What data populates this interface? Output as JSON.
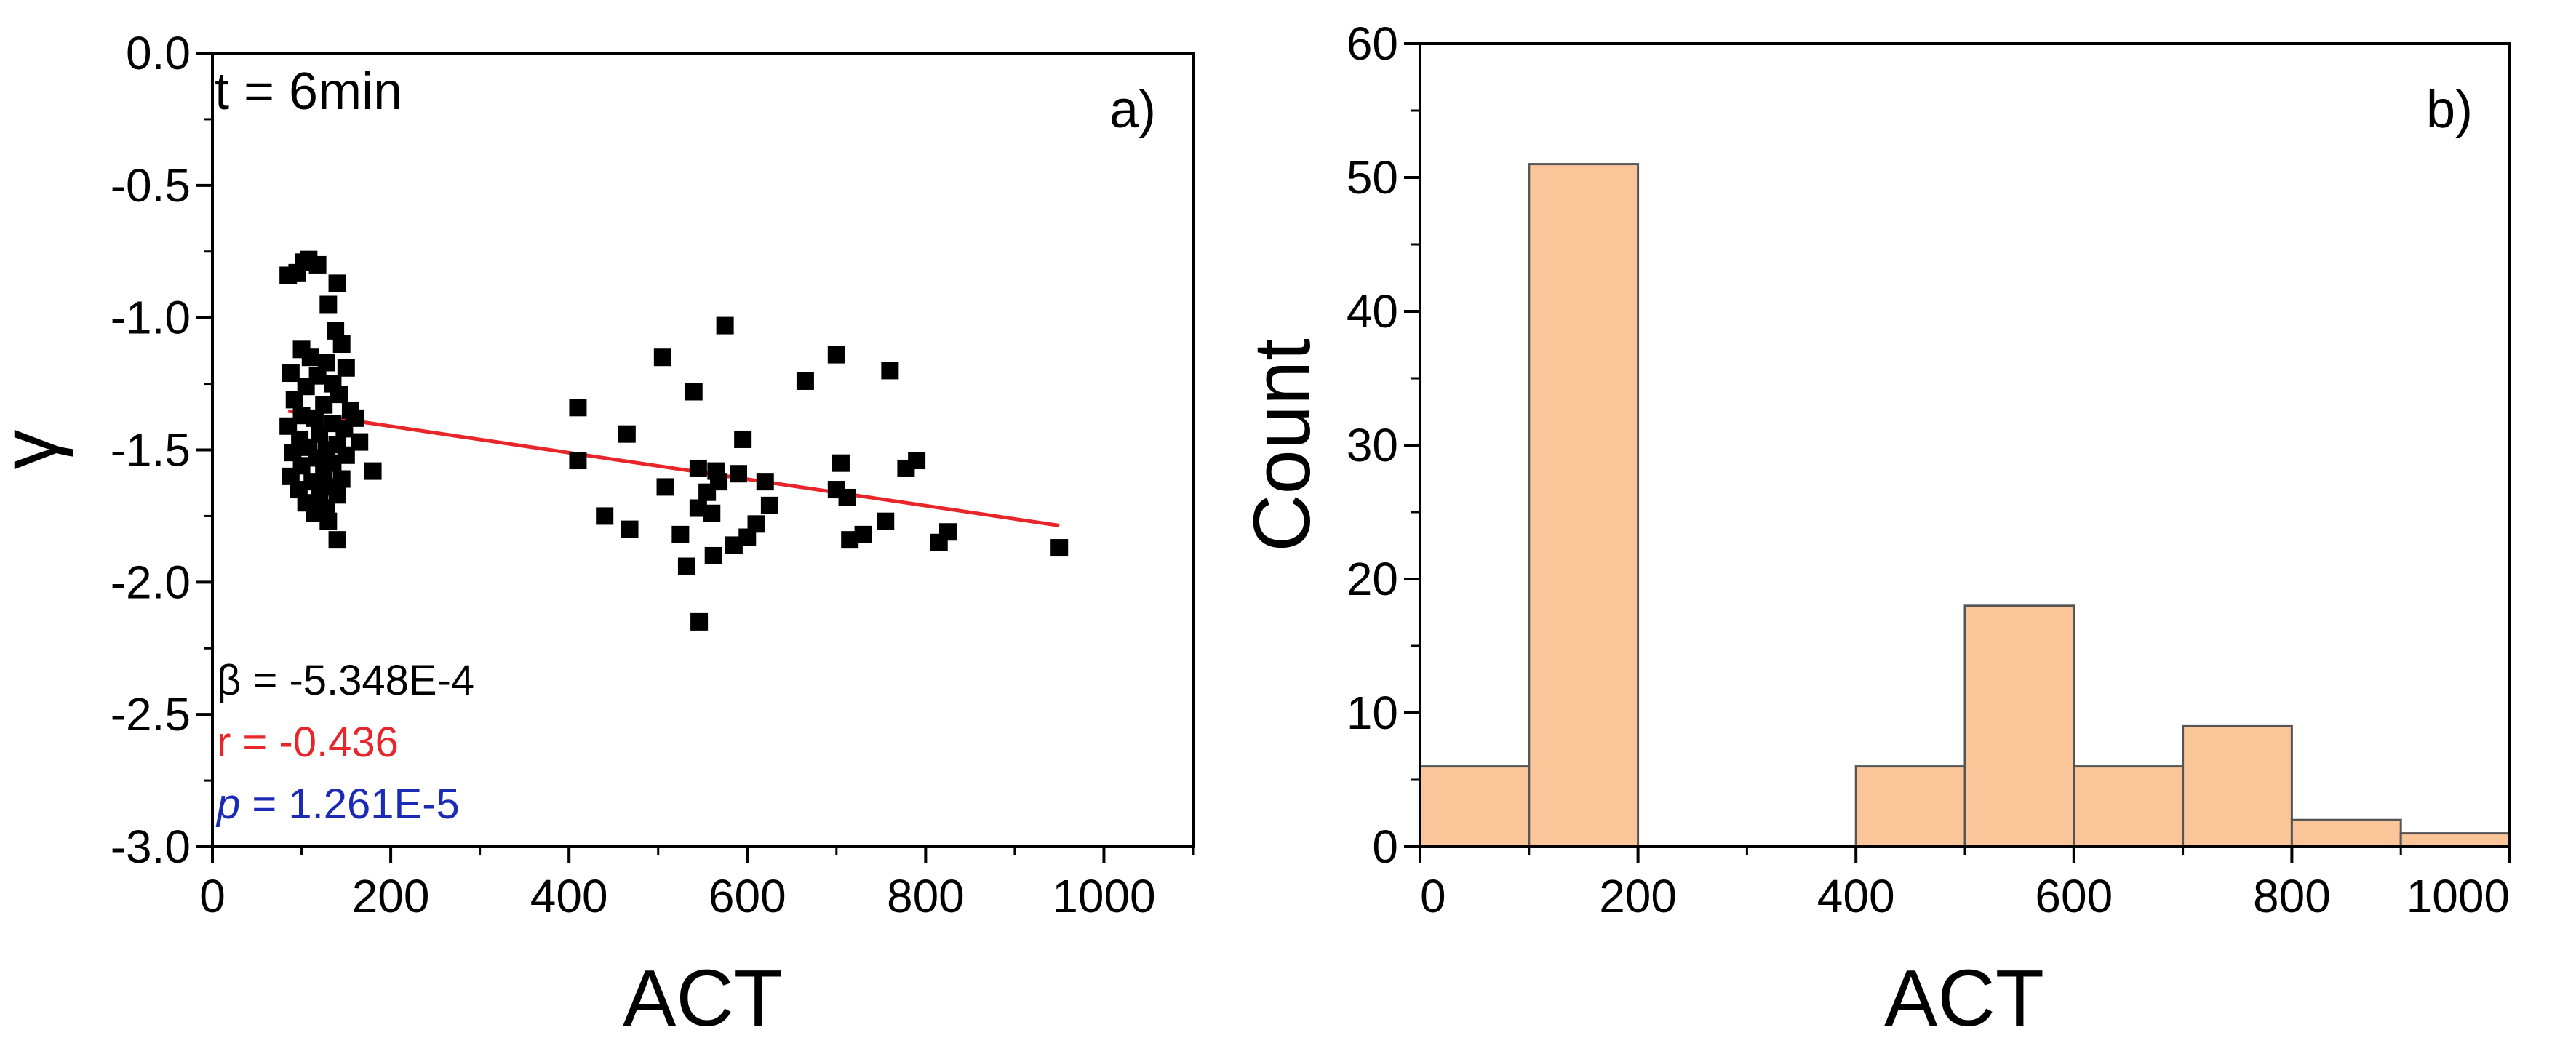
{
  "colors": {
    "marker": "#000000",
    "fit_line": "#e8262a",
    "annot_beta": "#000000",
    "annot_r": "#e8262a",
    "annot_p": "#1c2bb5",
    "bar_fill": "#fbc59a",
    "bar_edge": "#555555"
  },
  "chart_data": [
    {
      "panel": "a)",
      "type": "scatter",
      "title": "t = 6min",
      "xlabel": "ACT",
      "ylabel": "γ",
      "xlim": [
        0,
        1100
      ],
      "ylim": [
        -3.0,
        0.0
      ],
      "xticks": [
        "0",
        "200",
        "400",
        "600",
        "800",
        "1000"
      ],
      "yticks": [
        "0.0",
        "-0.5",
        "-1.0",
        "-1.5",
        "-2.0",
        "-2.5",
        "-3.0"
      ],
      "annotations": {
        "beta_label": "β = -5.348E-4",
        "r_label": "r  = -0.436",
        "p_symbol": "p",
        "p_value": " = 1.261E-5"
      },
      "fit_line": {
        "x": [
          85,
          950
        ],
        "y": [
          -1.353,
          -1.786
        ]
      },
      "points": [
        [
          85,
          -0.84
        ],
        [
          95,
          -0.83
        ],
        [
          102,
          -0.79
        ],
        [
          108,
          -0.78
        ],
        [
          118,
          -0.8
        ],
        [
          140,
          -0.87
        ],
        [
          130,
          -0.95
        ],
        [
          138,
          -1.05
        ],
        [
          100,
          -1.12
        ],
        [
          145,
          -1.1
        ],
        [
          110,
          -1.15
        ],
        [
          128,
          -1.17
        ],
        [
          150,
          -1.19
        ],
        [
          88,
          -1.21
        ],
        [
          118,
          -1.22
        ],
        [
          135,
          -1.25
        ],
        [
          105,
          -1.26
        ],
        [
          142,
          -1.29
        ],
        [
          92,
          -1.31
        ],
        [
          125,
          -1.33
        ],
        [
          155,
          -1.35
        ],
        [
          100,
          -1.37
        ],
        [
          115,
          -1.38
        ],
        [
          160,
          -1.38
        ],
        [
          135,
          -1.4
        ],
        [
          85,
          -1.41
        ],
        [
          148,
          -1.42
        ],
        [
          120,
          -1.44
        ],
        [
          98,
          -1.46
        ],
        [
          165,
          -1.47
        ],
        [
          140,
          -1.48
        ],
        [
          108,
          -1.49
        ],
        [
          128,
          -1.5
        ],
        [
          90,
          -1.51
        ],
        [
          150,
          -1.52
        ],
        [
          117,
          -1.53
        ],
        [
          135,
          -1.55
        ],
        [
          100,
          -1.56
        ],
        [
          125,
          -1.58
        ],
        [
          180,
          -1.58
        ],
        [
          88,
          -1.6
        ],
        [
          145,
          -1.61
        ],
        [
          112,
          -1.62
        ],
        [
          130,
          -1.64
        ],
        [
          97,
          -1.65
        ],
        [
          140,
          -1.67
        ],
        [
          120,
          -1.68
        ],
        [
          105,
          -1.7
        ],
        [
          128,
          -1.72
        ],
        [
          115,
          -1.74
        ],
        [
          130,
          -1.77
        ],
        [
          140,
          -1.84
        ],
        [
          410,
          -1.34
        ],
        [
          410,
          -1.54
        ],
        [
          440,
          -1.75
        ],
        [
          465,
          -1.44
        ],
        [
          468,
          -1.8
        ],
        [
          505,
          -1.15
        ],
        [
          508,
          -1.64
        ],
        [
          525,
          -1.82
        ],
        [
          532,
          -1.94
        ],
        [
          540,
          -1.28
        ],
        [
          545,
          -1.57
        ],
        [
          545,
          -1.72
        ],
        [
          546,
          -2.15
        ],
        [
          555,
          -1.66
        ],
        [
          560,
          -1.74
        ],
        [
          562,
          -1.9
        ],
        [
          565,
          -1.58
        ],
        [
          568,
          -1.62
        ],
        [
          575,
          -1.03
        ],
        [
          585,
          -1.86
        ],
        [
          590,
          -1.59
        ],
        [
          595,
          -1.46
        ],
        [
          600,
          -1.83
        ],
        [
          610,
          -1.78
        ],
        [
          620,
          -1.62
        ],
        [
          625,
          -1.71
        ],
        [
          665,
          -1.24
        ],
        [
          700,
          -1.14
        ],
        [
          700,
          -1.65
        ],
        [
          705,
          -1.55
        ],
        [
          712,
          -1.68
        ],
        [
          715,
          -1.84
        ],
        [
          730,
          -1.82
        ],
        [
          755,
          -1.77
        ],
        [
          760,
          -1.2
        ],
        [
          778,
          -1.57
        ],
        [
          790,
          -1.54
        ],
        [
          815,
          -1.85
        ],
        [
          825,
          -1.81
        ],
        [
          950,
          -1.87
        ]
      ]
    },
    {
      "panel": "b)",
      "type": "bar",
      "xlabel": "ACT",
      "ylabel": "Count",
      "xlim": [
        0,
        1000
      ],
      "ylim": [
        0,
        60
      ],
      "xticks": [
        "0",
        "200",
        "400",
        "600",
        "800",
        "1000"
      ],
      "yticks": [
        "0",
        "10",
        "20",
        "30",
        "40",
        "50",
        "60"
      ],
      "bin_edges": [
        0,
        100,
        200,
        300,
        400,
        500,
        600,
        700,
        800,
        900,
        1000
      ],
      "values": [
        6,
        51,
        0,
        0,
        6,
        18,
        6,
        9,
        2,
        1
      ]
    }
  ]
}
